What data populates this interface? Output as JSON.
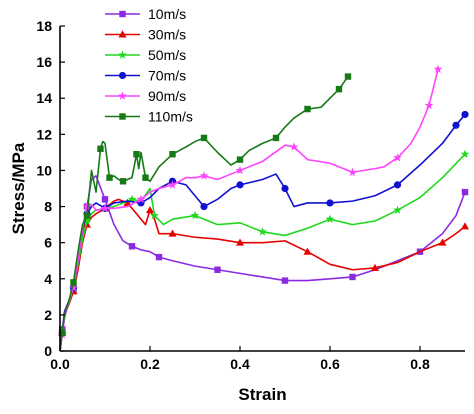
{
  "chart_data": {
    "type": "line",
    "xlabel": "Strain",
    "ylabel": "Stress/MPa",
    "xlim": [
      0,
      0.9
    ],
    "ylim": [
      0,
      18
    ],
    "xticks": [
      0.0,
      0.2,
      0.4,
      0.6,
      0.8
    ],
    "yticks": [
      0,
      2,
      4,
      6,
      8,
      10,
      12,
      14,
      16,
      18
    ],
    "grid": false,
    "legend_position": "top-left",
    "series": [
      {
        "name": "10m/s",
        "color": "#8a2be2",
        "marker": "square",
        "x": [
          0.0,
          0.005,
          0.01,
          0.02,
          0.03,
          0.04,
          0.05,
          0.06,
          0.07,
          0.08,
          0.1,
          0.12,
          0.14,
          0.16,
          0.18,
          0.2,
          0.22,
          0.25,
          0.3,
          0.35,
          0.4,
          0.45,
          0.5,
          0.55,
          0.6,
          0.65,
          0.7,
          0.75,
          0.8,
          0.85,
          0.88,
          0.9
        ],
        "y": [
          0.0,
          1.2,
          2.2,
          2.8,
          3.4,
          5.0,
          6.5,
          8.0,
          9.5,
          9.7,
          8.4,
          7.0,
          6.1,
          5.8,
          5.6,
          5.5,
          5.2,
          5.0,
          4.7,
          4.5,
          4.3,
          4.1,
          3.9,
          3.9,
          4.0,
          4.1,
          4.5,
          5.0,
          5.5,
          6.5,
          7.5,
          8.8
        ]
      },
      {
        "name": "30m/s",
        "color": "#e60000",
        "marker": "triangle",
        "x": [
          0.0,
          0.005,
          0.01,
          0.02,
          0.03,
          0.04,
          0.05,
          0.06,
          0.07,
          0.08,
          0.1,
          0.12,
          0.13,
          0.15,
          0.17,
          0.19,
          0.2,
          0.21,
          0.22,
          0.25,
          0.3,
          0.35,
          0.4,
          0.45,
          0.5,
          0.55,
          0.6,
          0.65,
          0.7,
          0.75,
          0.8,
          0.85,
          0.88,
          0.9
        ],
        "y": [
          0.0,
          1.0,
          2.0,
          2.6,
          3.3,
          4.5,
          6.0,
          7.0,
          7.4,
          7.6,
          7.9,
          8.3,
          8.4,
          8.2,
          7.6,
          7.0,
          7.8,
          7.3,
          6.5,
          6.5,
          6.3,
          6.2,
          6.0,
          6.0,
          6.1,
          5.5,
          4.8,
          4.5,
          4.6,
          4.9,
          5.5,
          6.0,
          6.5,
          6.9
        ]
      },
      {
        "name": "50m/s",
        "color": "#1ed91e",
        "marker": "star",
        "x": [
          0.0,
          0.005,
          0.01,
          0.02,
          0.03,
          0.04,
          0.05,
          0.06,
          0.07,
          0.08,
          0.1,
          0.12,
          0.14,
          0.16,
          0.18,
          0.2,
          0.21,
          0.23,
          0.25,
          0.3,
          0.35,
          0.4,
          0.45,
          0.5,
          0.55,
          0.6,
          0.65,
          0.7,
          0.75,
          0.8,
          0.85,
          0.9
        ],
        "y": [
          0.0,
          1.1,
          2.0,
          2.7,
          3.5,
          4.8,
          6.2,
          7.2,
          7.6,
          7.8,
          7.9,
          8.0,
          8.2,
          8.4,
          8.3,
          9.0,
          7.5,
          7.0,
          7.3,
          7.5,
          7.0,
          7.1,
          6.6,
          6.4,
          6.8,
          7.3,
          7.0,
          7.2,
          7.8,
          8.5,
          9.6,
          10.9
        ]
      },
      {
        "name": "70m/s",
        "color": "#1010d0",
        "marker": "circle",
        "x": [
          0.0,
          0.005,
          0.01,
          0.02,
          0.03,
          0.04,
          0.05,
          0.06,
          0.07,
          0.08,
          0.1,
          0.12,
          0.15,
          0.18,
          0.2,
          0.22,
          0.25,
          0.28,
          0.3,
          0.32,
          0.35,
          0.38,
          0.4,
          0.45,
          0.48,
          0.5,
          0.52,
          0.55,
          0.6,
          0.65,
          0.7,
          0.75,
          0.8,
          0.85,
          0.88,
          0.9
        ],
        "y": [
          0.0,
          1.0,
          2.1,
          2.8,
          3.5,
          5.0,
          6.8,
          7.6,
          8.0,
          8.2,
          7.9,
          8.2,
          8.3,
          8.2,
          8.5,
          9.0,
          9.4,
          9.2,
          8.6,
          8.0,
          8.4,
          9.0,
          9.2,
          9.5,
          9.8,
          9.0,
          8.0,
          8.2,
          8.2,
          8.3,
          8.6,
          9.2,
          10.3,
          11.5,
          12.5,
          13.1
        ]
      },
      {
        "name": "90m/s",
        "color": "#ff44ff",
        "marker": "star",
        "x": [
          0.0,
          0.005,
          0.01,
          0.02,
          0.03,
          0.04,
          0.05,
          0.06,
          0.07,
          0.08,
          0.1,
          0.12,
          0.15,
          0.18,
          0.2,
          0.22,
          0.25,
          0.28,
          0.3,
          0.32,
          0.35,
          0.38,
          0.4,
          0.45,
          0.5,
          0.52,
          0.55,
          0.6,
          0.65,
          0.7,
          0.72,
          0.75,
          0.78,
          0.8,
          0.82,
          0.84
        ],
        "y": [
          0.0,
          0.9,
          1.8,
          2.8,
          3.5,
          5.0,
          6.8,
          8.0,
          8.1,
          7.8,
          7.9,
          7.9,
          8.0,
          8.4,
          8.8,
          9.0,
          9.2,
          9.6,
          9.6,
          9.7,
          9.5,
          9.8,
          10.0,
          10.5,
          11.4,
          11.3,
          10.6,
          10.4,
          9.9,
          10.1,
          10.2,
          10.7,
          11.5,
          12.4,
          13.6,
          15.6
        ]
      },
      {
        "name": "110m/s",
        "color": "#157a15",
        "marker": "square",
        "x": [
          0.0,
          0.005,
          0.01,
          0.02,
          0.03,
          0.04,
          0.05,
          0.06,
          0.07,
          0.08,
          0.09,
          0.095,
          0.1,
          0.11,
          0.12,
          0.13,
          0.14,
          0.15,
          0.16,
          0.17,
          0.175,
          0.18,
          0.19,
          0.2,
          0.22,
          0.25,
          0.28,
          0.3,
          0.32,
          0.35,
          0.38,
          0.4,
          0.42,
          0.45,
          0.48,
          0.5,
          0.52,
          0.55,
          0.58,
          0.6,
          0.62,
          0.64
        ],
        "y": [
          0.0,
          1.0,
          2.0,
          2.8,
          3.8,
          5.5,
          7.0,
          7.5,
          10.0,
          8.8,
          11.2,
          11.6,
          11.5,
          9.6,
          9.7,
          9.5,
          9.4,
          9.5,
          9.6,
          10.9,
          10.1,
          11.0,
          9.6,
          9.4,
          10.2,
          10.9,
          11.3,
          11.6,
          11.8,
          11.0,
          10.3,
          10.6,
          11.1,
          11.5,
          11.8,
          12.4,
          12.9,
          13.4,
          13.5,
          14.0,
          14.5,
          15.2
        ]
      }
    ]
  }
}
